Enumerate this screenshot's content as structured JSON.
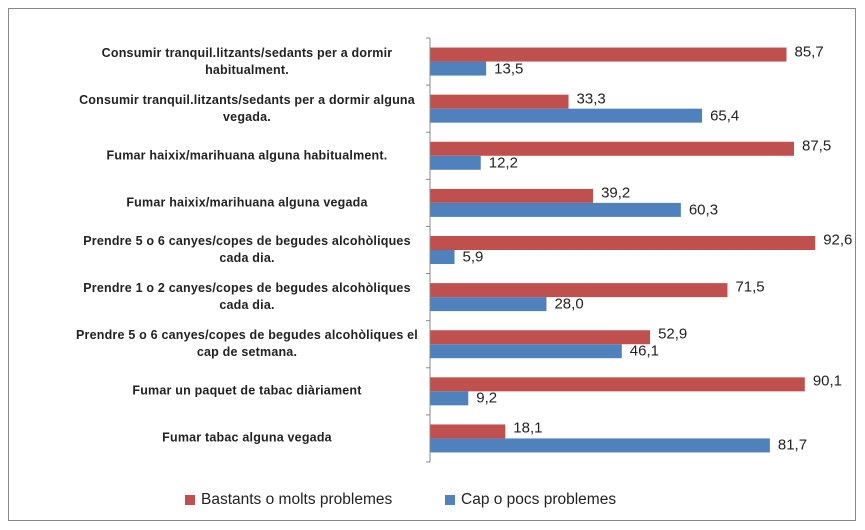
{
  "chart_data": {
    "type": "barh",
    "categories": [
      "Consumir tranquil.litzants/sedants per a dormir habitualment.",
      "Consumir tranquil.litzants/sedants per a dormir alguna vegada.",
      "Fumar haixix/marihuana alguna habitualment.",
      "Fumar haixix/marihuana alguna vegada",
      "Prendre 5 o 6 canyes/copes de begudes alcohòliques cada dia.",
      "Prendre 1 o 2 canyes/copes de begudes alcohòliques cada dia.",
      "Prendre 5 o 6 canyes/copes de begudes alcohòliques el cap de setmana.",
      "Fumar un paquet de tabac diàriament",
      "Fumar tabac alguna vegada"
    ],
    "series": [
      {
        "name": "Bastants o molts problemes",
        "color": "#c0504d",
        "values": [
          85.7,
          33.3,
          87.5,
          39.2,
          92.6,
          71.5,
          52.9,
          90.1,
          18.1
        ],
        "value_labels": [
          "85,7",
          "33,3",
          "87,5",
          "39,2",
          "92,6",
          "71,5",
          "52,9",
          "90,1",
          "18,1"
        ]
      },
      {
        "name": "Cap o pocs problemes",
        "color": "#4f81bd",
        "values": [
          13.5,
          65.4,
          12.2,
          60.3,
          5.9,
          28.0,
          46.1,
          9.2,
          81.7
        ],
        "value_labels": [
          "13,5",
          "65,4",
          "12,2",
          "60,3",
          "5,9",
          "28,0",
          "46,1",
          "9,2",
          "81,7"
        ]
      }
    ],
    "xlim": [
      0,
      100
    ],
    "legend": "bottom"
  }
}
